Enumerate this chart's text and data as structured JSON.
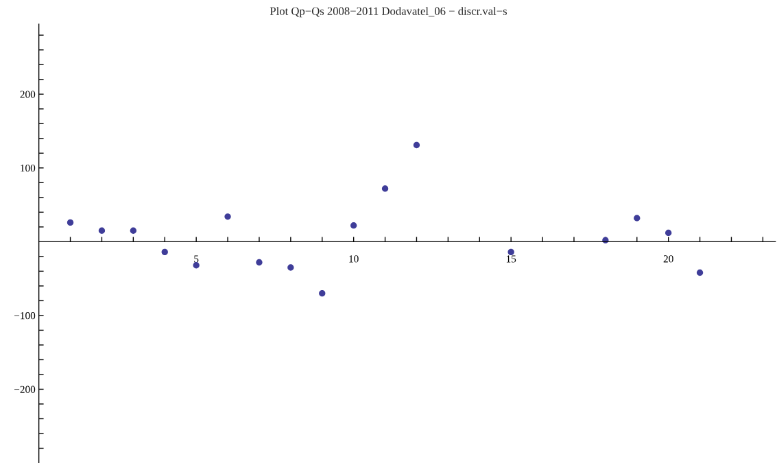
{
  "chart_data": {
    "type": "scatter",
    "title": "Plot Qp−Qs 2008−2011 Dodavatel_06 − discr.val−s",
    "x": [
      1,
      2,
      3,
      4,
      5,
      6,
      7,
      8,
      9,
      10,
      11,
      12,
      15,
      18,
      19,
      20,
      21
    ],
    "series": [
      {
        "color": "#3f3d99",
        "values": [
          26,
          15,
          15,
          -14,
          -32,
          34,
          -28,
          -35,
          -70,
          22,
          72,
          131,
          -14,
          2,
          32,
          12,
          -42
        ]
      }
    ],
    "marker": "circle",
    "grid": false,
    "legend": false,
    "xlim": [
      0,
      23.4
    ],
    "ylim": [
      -300,
      295
    ],
    "xticks": [
      {
        "value": 1,
        "label": null
      },
      {
        "value": 2,
        "label": null
      },
      {
        "value": 3,
        "label": null
      },
      {
        "value": 4,
        "label": null
      },
      5,
      {
        "value": 6,
        "label": null
      },
      {
        "value": 7,
        "label": null
      },
      {
        "value": 8,
        "label": null
      },
      {
        "value": 9,
        "label": null
      },
      10,
      {
        "value": 11,
        "label": null
      },
      {
        "value": 12,
        "label": null
      },
      {
        "value": 13,
        "label": null
      },
      {
        "value": 14,
        "label": null
      },
      15,
      {
        "value": 16,
        "label": null
      },
      {
        "value": 17,
        "label": null
      },
      {
        "value": 18,
        "label": null
      },
      {
        "value": 19,
        "label": null
      },
      20,
      {
        "value": 21,
        "label": null
      },
      {
        "value": 22,
        "label": null
      },
      {
        "value": 23,
        "label": null
      }
    ],
    "yticks": [
      {
        "value": -280,
        "label": null
      },
      {
        "value": -260,
        "label": null
      },
      {
        "value": -240,
        "label": null
      },
      {
        "value": -220,
        "label": null
      },
      {
        "value": -200,
        "label": "−200"
      },
      {
        "value": -180,
        "label": null
      },
      {
        "value": -160,
        "label": null
      },
      {
        "value": -140,
        "label": null
      },
      {
        "value": -120,
        "label": null
      },
      {
        "value": -100,
        "label": "−100"
      },
      {
        "value": -80,
        "label": null
      },
      {
        "value": -60,
        "label": null
      },
      {
        "value": -40,
        "label": null
      },
      {
        "value": -20,
        "label": null
      },
      {
        "value": 20,
        "label": null
      },
      {
        "value": 40,
        "label": null
      },
      {
        "value": 60,
        "label": null
      },
      {
        "value": 80,
        "label": null
      },
      100,
      {
        "value": 120,
        "label": null
      },
      {
        "value": 140,
        "label": null
      },
      {
        "value": 160,
        "label": null
      },
      {
        "value": 180,
        "label": null
      },
      200,
      {
        "value": 220,
        "label": null
      },
      {
        "value": 240,
        "label": null
      },
      {
        "value": 260,
        "label": null
      },
      {
        "value": 280,
        "label": null
      }
    ]
  }
}
